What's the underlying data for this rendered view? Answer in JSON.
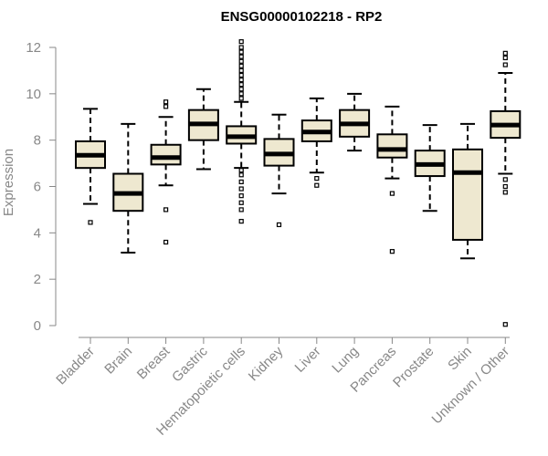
{
  "chart_data": {
    "type": "boxplot",
    "title": "ENSG00000102218 - RP2",
    "ylabel": "Expression",
    "xlabel": "",
    "ylim": [
      0,
      12
    ],
    "yticks": [
      0,
      2,
      4,
      6,
      8,
      10,
      12
    ],
    "grid": false,
    "box_color": "#EEE8D0",
    "categories": [
      "Bladder",
      "Brain",
      "Breast",
      "Gastric",
      "Hematopoietic cells",
      "Kidney",
      "Liver",
      "Lung",
      "Pancreas",
      "Prostate",
      "Skin",
      "Unknown / Other"
    ],
    "series": [
      {
        "category": "Bladder",
        "min": 5.25,
        "q1": 6.8,
        "median": 7.35,
        "q3": 7.95,
        "max": 9.35,
        "outliers": [
          4.45
        ]
      },
      {
        "category": "Brain",
        "min": 3.15,
        "q1": 4.95,
        "median": 5.7,
        "q3": 6.55,
        "max": 8.7,
        "outliers": []
      },
      {
        "category": "Breast",
        "min": 6.05,
        "q1": 6.95,
        "median": 7.25,
        "q3": 7.8,
        "max": 9.0,
        "outliers": [
          9.45,
          9.65,
          5.0,
          3.6
        ]
      },
      {
        "category": "Gastric",
        "min": 6.75,
        "q1": 8.0,
        "median": 8.7,
        "q3": 9.3,
        "max": 10.2,
        "outliers": []
      },
      {
        "category": "Hematopoietic cells",
        "min": 6.8,
        "q1": 7.85,
        "median": 8.15,
        "q3": 8.6,
        "max": 9.65,
        "outliers": [
          9.8,
          10.0,
          10.2,
          10.4,
          10.6,
          10.8,
          11.0,
          11.2,
          11.4,
          11.6,
          11.8,
          12.0,
          12.25,
          6.7,
          6.5,
          6.2,
          5.9,
          5.6,
          5.3,
          5.0,
          4.5
        ]
      },
      {
        "category": "Kidney",
        "min": 5.7,
        "q1": 6.9,
        "median": 7.4,
        "q3": 8.05,
        "max": 9.1,
        "outliers": [
          4.35
        ]
      },
      {
        "category": "Liver",
        "min": 6.6,
        "q1": 7.95,
        "median": 8.35,
        "q3": 8.85,
        "max": 9.8,
        "outliers": [
          6.35,
          6.05
        ]
      },
      {
        "category": "Lung",
        "min": 7.55,
        "q1": 8.15,
        "median": 8.7,
        "q3": 9.3,
        "max": 10.0,
        "outliers": []
      },
      {
        "category": "Pancreas",
        "min": 6.35,
        "q1": 7.25,
        "median": 7.6,
        "q3": 8.25,
        "max": 9.45,
        "outliers": [
          5.7,
          3.2
        ]
      },
      {
        "category": "Prostate",
        "min": 4.95,
        "q1": 6.45,
        "median": 6.95,
        "q3": 7.55,
        "max": 8.65,
        "outliers": []
      },
      {
        "category": "Skin",
        "min": 2.9,
        "q1": 3.7,
        "median": 6.6,
        "q3": 7.6,
        "max": 8.7,
        "outliers": []
      },
      {
        "category": "Unknown / Other",
        "min": 6.55,
        "q1": 8.1,
        "median": 8.65,
        "q3": 9.25,
        "max": 10.9,
        "outliers": [
          11.25,
          11.55,
          11.75,
          6.3,
          6.0,
          5.75,
          0.05
        ]
      }
    ]
  }
}
